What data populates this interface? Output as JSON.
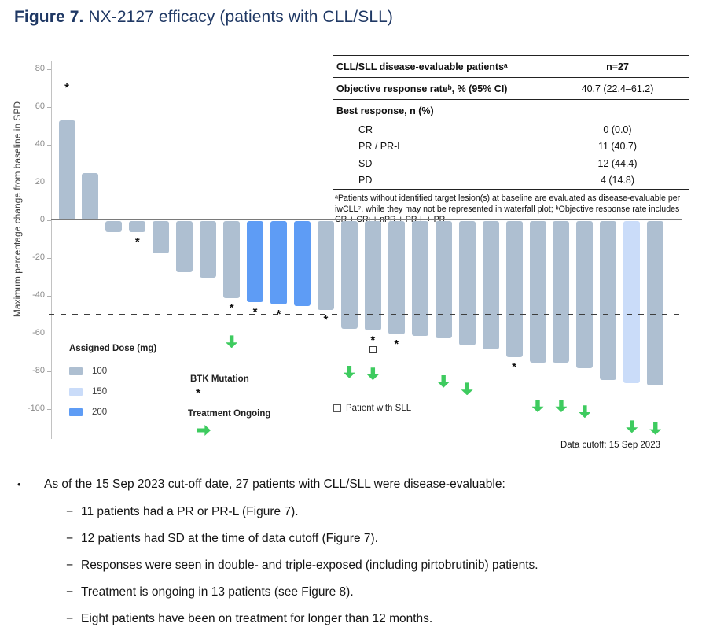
{
  "title": {
    "prefix": "Figure 7.",
    "rest": " NX-2127 efficacy (patients with CLL/SLL)"
  },
  "chart_data": {
    "type": "bar",
    "title": "NX-2127 efficacy waterfall (patients with CLL/SLL)",
    "ylabel": "Maximum percentage change from baseline in SPD",
    "yticks": [
      80,
      60,
      40,
      20,
      0,
      -20,
      -40,
      -60,
      -80,
      -100
    ],
    "ylim": [
      -100,
      80
    ],
    "threshold": -50,
    "grid": false,
    "legend_position": "bottom-left",
    "dose_colors": {
      "100": "#aebfd1",
      "150": "#cadcf9",
      "200": "#5e9cf5"
    },
    "markers": {
      "btk": "*"
    },
    "bars": [
      {
        "value": 53,
        "dose": "100",
        "btk": true
      },
      {
        "value": 25,
        "dose": "100"
      },
      {
        "value": -6,
        "dose": "100"
      },
      {
        "value": -6,
        "dose": "100",
        "btk": true
      },
      {
        "value": -17,
        "dose": "100"
      },
      {
        "value": -27,
        "dose": "100"
      },
      {
        "value": -30,
        "dose": "100"
      },
      {
        "value": -41,
        "dose": "100",
        "btk": true,
        "ongoing": true
      },
      {
        "value": -43,
        "dose": "200",
        "btk": true
      },
      {
        "value": -44,
        "dose": "200",
        "btk": true
      },
      {
        "value": -45,
        "dose": "200"
      },
      {
        "value": -47,
        "dose": "100",
        "btk": true
      },
      {
        "value": -57,
        "dose": "100",
        "ongoing": true
      },
      {
        "value": -58,
        "dose": "100",
        "btk": true,
        "sll": true,
        "ongoing": true
      },
      {
        "value": -60,
        "dose": "100",
        "btk": true
      },
      {
        "value": -61,
        "dose": "100"
      },
      {
        "value": -62,
        "dose": "100",
        "ongoing": true
      },
      {
        "value": -66,
        "dose": "100",
        "ongoing": true
      },
      {
        "value": -68,
        "dose": "100"
      },
      {
        "value": -72,
        "dose": "100",
        "btk": true
      },
      {
        "value": -75,
        "dose": "100",
        "ongoing": true
      },
      {
        "value": -75,
        "dose": "100",
        "ongoing": true
      },
      {
        "value": -78,
        "dose": "100",
        "ongoing": true
      },
      {
        "value": -84,
        "dose": "100"
      },
      {
        "value": -86,
        "dose": "150",
        "ongoing": true
      },
      {
        "value": -87,
        "dose": "100",
        "ongoing": true
      }
    ]
  },
  "legend": {
    "dose_title": "Assigned Dose (mg)",
    "doses": [
      "100",
      "150",
      "200"
    ],
    "btk_label": "BTK Mutation",
    "btk_symbol": "*",
    "ongoing_label": "Treatment Ongoing",
    "sll_label": "Patient with SLL"
  },
  "data_cutoff": "Data cutoff: 15 Sep 2023",
  "table": {
    "header": {
      "label": "CLL/SLL disease-evaluable patientsᵃ",
      "value": "n=27"
    },
    "orr": {
      "label": "Objective response rateᵇ, % (95% CI)",
      "value": "40.7 (22.4–61.2)"
    },
    "best_response_label": "Best response, n (%)",
    "rows": [
      {
        "label": "CR",
        "value": "0 (0.0)"
      },
      {
        "label": "PR / PR-L",
        "value": "11 (40.7)"
      },
      {
        "label": "SD",
        "value": "12 (44.4)"
      },
      {
        "label": "PD",
        "value": "4 (14.8)"
      }
    ],
    "footnote": "ᵃPatients without identified target lesion(s) at baseline are evaluated as disease-evaluable per iwCLL⁷, while they may not be represented in waterfall plot; ᵇObjective response rate includes CR + CRi + nPR + PR-L + PR"
  },
  "bullets": {
    "marker_main": "•",
    "marker_sub": "−",
    "main": "As of the 15 Sep 2023 cut-off date, 27 patients with CLL/SLL were disease-evaluable:",
    "subs": [
      "11 patients had a PR or PR-L (Figure 7).",
      "12 patients had SD at the time of data cutoff (Figure 7).",
      "Responses were seen in double- and triple-exposed (including pirtobrutinib) patients.",
      "Treatment is ongoing in 13 patients (see Figure 8).",
      "Eight patients have been on treatment for longer than 12 months."
    ]
  }
}
